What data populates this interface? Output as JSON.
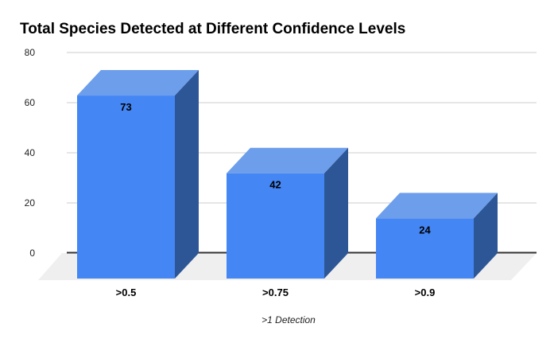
{
  "title": "Total Species Detected at Different Confidence Levels",
  "x_axis_title": ">1 Detection",
  "chart_data": {
    "type": "bar",
    "subtype": "3d-column",
    "title": "Total Species Detected at Different Confidence Levels",
    "xlabel": ">1 Detection",
    "ylabel": "",
    "categories": [
      ">0.5",
      ">0.75",
      ">0.9"
    ],
    "values": [
      73,
      42,
      24
    ],
    "data_labels": [
      "73",
      "42",
      "24"
    ],
    "ylim": [
      0,
      80
    ],
    "yticks": [
      0,
      20,
      40,
      60,
      80
    ],
    "ytick_labels": [
      "0",
      "20",
      "40",
      "60",
      "80"
    ],
    "grid": true,
    "legend": "none",
    "colors": {
      "bar_front": "#4486F3",
      "bar_top": "#6D9EEB",
      "bar_side": "#2D5697",
      "floor": "#EFEFEF",
      "gridline": "#CCCCCC",
      "axis_line": "#333333",
      "tick_text": "#222222",
      "label_text": "#000000",
      "background": "#FFFFFF"
    }
  }
}
